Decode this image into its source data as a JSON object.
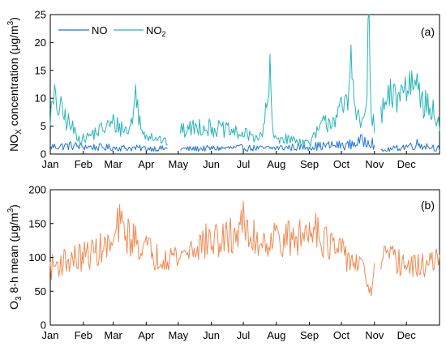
{
  "chart_data": [
    {
      "type": "line",
      "panel_label": "(a)",
      "ylabel": "NOX concentration (μg/m3)",
      "ylabel_parts": {
        "base": "NO",
        "sub": "X",
        "rest": " concentration (μg/m",
        "sup": "3",
        "end": ")"
      },
      "ylim": [
        0,
        25
      ],
      "yticks": [
        0,
        5,
        10,
        15,
        20,
        25
      ],
      "ytick_labels": [
        "0",
        "5",
        "10",
        "15",
        "20",
        "25"
      ],
      "xlim": [
        1,
        366
      ],
      "x_unit": "day of year",
      "xticks": [
        1,
        32,
        60,
        91,
        121,
        152,
        182,
        213,
        244,
        274,
        305,
        335
      ],
      "xtick_labels": [
        "Jan",
        "Feb",
        "Mar",
        "Apr",
        "May",
        "Jun",
        "Jul",
        "Aug",
        "Sep",
        "Oct",
        "Nov",
        "Dec"
      ],
      "legend_position": "top-left",
      "grid": false,
      "series": [
        {
          "name": "NO",
          "legend_label": {
            "base": "NO",
            "sub": ""
          },
          "color": "#1f74d4",
          "knots": [
            [
              1,
              1.3
            ],
            [
              20,
              1.5
            ],
            [
              45,
              1.2
            ],
            [
              70,
              1.1
            ],
            [
              100,
              1.0
            ],
            [
              121,
              0.9
            ],
            [
              150,
              1.0
            ],
            [
              182,
              1.1
            ],
            [
              200,
              1.0
            ],
            [
              213,
              1.1
            ],
            [
              240,
              1.3
            ],
            [
              260,
              1.5
            ],
            [
              280,
              1.6
            ],
            [
              295,
              2.4
            ],
            [
              300,
              2.8
            ],
            [
              305,
              1.6
            ],
            [
              310,
              0.5
            ],
            [
              330,
              1.2
            ],
            [
              345,
              1.8
            ],
            [
              366,
              1.0
            ]
          ],
          "gaps": [
            [
              111,
              123
            ],
            [
              305,
              311
            ]
          ]
        },
        {
          "name": "NO2",
          "legend_label": {
            "base": "NO",
            "sub": "2"
          },
          "color": "#28b5b5",
          "knots": [
            [
              1,
              7.0
            ],
            [
              5,
              9.5
            ],
            [
              20,
              5.0
            ],
            [
              30,
              2.5
            ],
            [
              45,
              4.0
            ],
            [
              60,
              5.5
            ],
            [
              75,
              4.0
            ],
            [
              82,
              11.0
            ],
            [
              86,
              4.0
            ],
            [
              100,
              3.0
            ],
            [
              111,
              2.0
            ],
            [
              123,
              4.0
            ],
            [
              140,
              5.0
            ],
            [
              160,
              4.5
            ],
            [
              182,
              3.5
            ],
            [
              200,
              3.0
            ],
            [
              205,
              10.5
            ],
            [
              207,
              13.3
            ],
            [
              210,
              3.0
            ],
            [
              230,
              2.5
            ],
            [
              245,
              2.0
            ],
            [
              255,
              5.0
            ],
            [
              270,
              7.0
            ],
            [
              280,
              9.0
            ],
            [
              284,
              20.5
            ],
            [
              288,
              6.0
            ],
            [
              296,
              6.0
            ],
            [
              300,
              22.2
            ],
            [
              302,
              6.0
            ],
            [
              305,
              5.0
            ],
            [
              311,
              7.0
            ],
            [
              320,
              10.0
            ],
            [
              330,
              11.0
            ],
            [
              340,
              13.0
            ],
            [
              346,
              16.5
            ],
            [
              350,
              9.0
            ],
            [
              360,
              7.5
            ],
            [
              366,
              5.0
            ]
          ],
          "gaps": [
            [
              111,
              123
            ],
            [
              305,
              311
            ]
          ]
        }
      ]
    },
    {
      "type": "line",
      "panel_label": "(b)",
      "ylabel": "O3 8-h mean (μg/m3)",
      "ylabel_parts": {
        "base": "O",
        "sub": "3",
        "rest": " 8-h mean (μg/m",
        "sup": "3",
        "end": ")"
      },
      "ylim": [
        0,
        200
      ],
      "yticks": [
        0,
        50,
        100,
        150,
        200
      ],
      "ytick_labels": [
        "0",
        "50",
        "100",
        "150",
        "200"
      ],
      "xlim": [
        1,
        366
      ],
      "x_unit": "day of year",
      "xticks": [
        1,
        32,
        60,
        91,
        121,
        152,
        182,
        213,
        244,
        274,
        305,
        335
      ],
      "xtick_labels": [
        "Jan",
        "Feb",
        "Mar",
        "Apr",
        "May",
        "Jun",
        "Jul",
        "Aug",
        "Sep",
        "Oct",
        "Nov",
        "Dec"
      ],
      "grid": false,
      "series": [
        {
          "name": "O3",
          "color": "#ef8a52",
          "knots": [
            [
              1,
              85
            ],
            [
              15,
              95
            ],
            [
              30,
              100
            ],
            [
              45,
              110
            ],
            [
              60,
              118
            ],
            [
              65,
              150
            ],
            [
              75,
              130
            ],
            [
              90,
              115
            ],
            [
              100,
              100
            ],
            [
              110,
              105
            ],
            [
              121,
              100
            ],
            [
              135,
              115
            ],
            [
              150,
              125
            ],
            [
              165,
              125
            ],
            [
              178,
              140
            ],
            [
              180,
              168
            ],
            [
              185,
              130
            ],
            [
              200,
              125
            ],
            [
              215,
              130
            ],
            [
              230,
              125
            ],
            [
              245,
              140
            ],
            [
              248,
              160
            ],
            [
              255,
              130
            ],
            [
              265,
              115
            ],
            [
              275,
              105
            ],
            [
              290,
              90
            ],
            [
              298,
              70
            ],
            [
              302,
              40
            ],
            [
              305,
              80
            ],
            [
              311,
              100
            ],
            [
              325,
              95
            ],
            [
              340,
              85
            ],
            [
              355,
              90
            ],
            [
              366,
              95
            ]
          ],
          "gaps": [
            [
              305,
              311
            ]
          ]
        }
      ]
    }
  ]
}
